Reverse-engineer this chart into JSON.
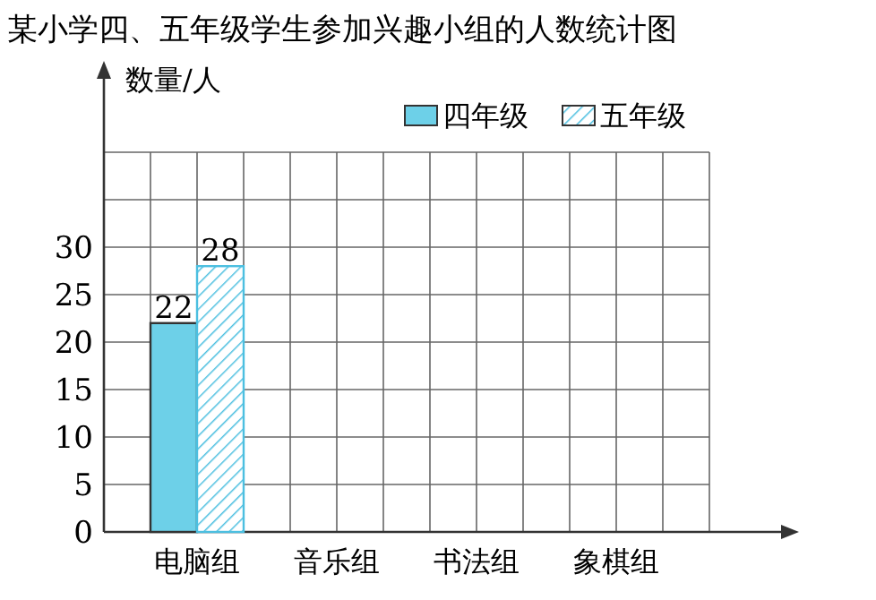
{
  "chart_data": {
    "type": "bar",
    "title": "某小学四、五年级学生参加兴趣小组的人数统计图",
    "ylabel": "数量/人",
    "categories": [
      "电脑组",
      "音乐组",
      "书法组",
      "象棋组"
    ],
    "series": [
      {
        "name": "四年级",
        "color": "#6dd0e8",
        "values": [
          22,
          null,
          null,
          null
        ]
      },
      {
        "name": "五年级",
        "color": "#4cbfe0",
        "values": [
          28,
          null,
          null,
          null
        ]
      }
    ],
    "ylim": [
      0,
      40
    ],
    "yticks": [
      0,
      5,
      10,
      15,
      20,
      25,
      30,
      {
        "value": 35,
        "label": null
      },
      {
        "value": 40,
        "label": null
      }
    ],
    "grid": true,
    "legend": "top right",
    "data_labels": true
  }
}
